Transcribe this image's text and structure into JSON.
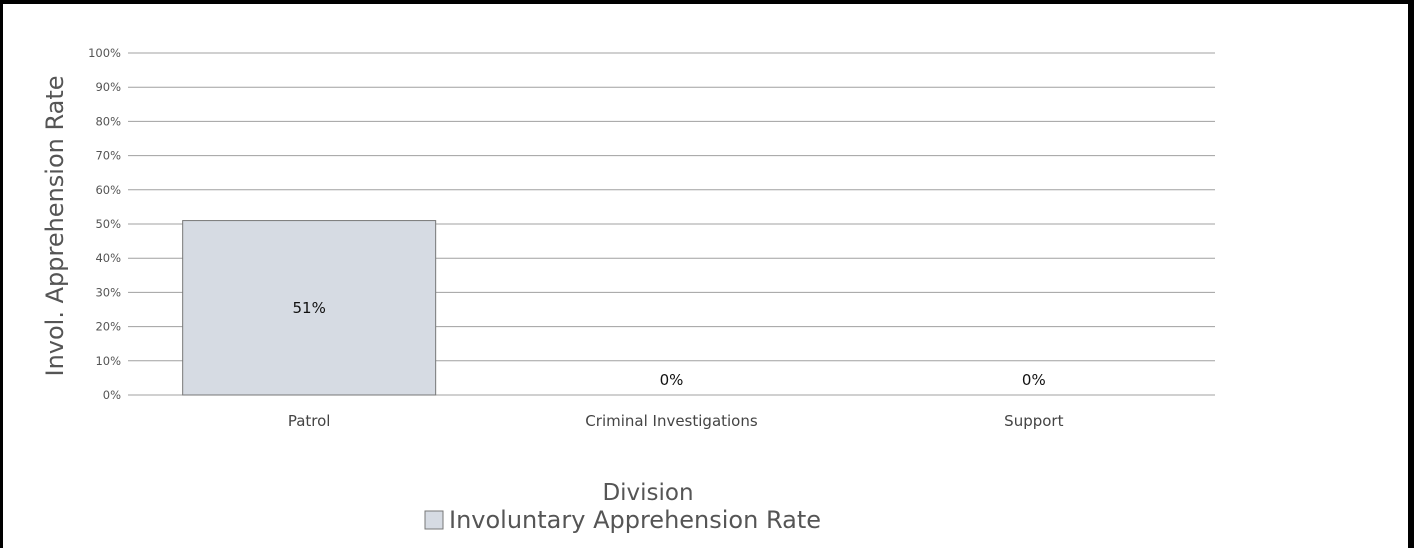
{
  "chart_data": {
    "type": "bar",
    "categories": [
      "Patrol",
      "Criminal Investigations",
      "Support"
    ],
    "series": [
      {
        "name": "Involuntary Apprehension Rate",
        "values": [
          51,
          0,
          0
        ],
        "labels": [
          "51%",
          "0%",
          "0%"
        ]
      }
    ],
    "xlabel": "Division",
    "ylabel": "Invol. Apprehension Rate",
    "ylim": [
      0,
      100
    ],
    "yticks": [
      "0%",
      "10%",
      "20%",
      "30%",
      "40%",
      "50%",
      "60%",
      "70%",
      "80%",
      "90%",
      "100%"
    ],
    "grid": true,
    "legend_position": "bottom-center",
    "colors": {
      "bar_fill": "#d6dbe3",
      "bar_stroke": "#777777",
      "grid": "#a0a0a0"
    }
  }
}
